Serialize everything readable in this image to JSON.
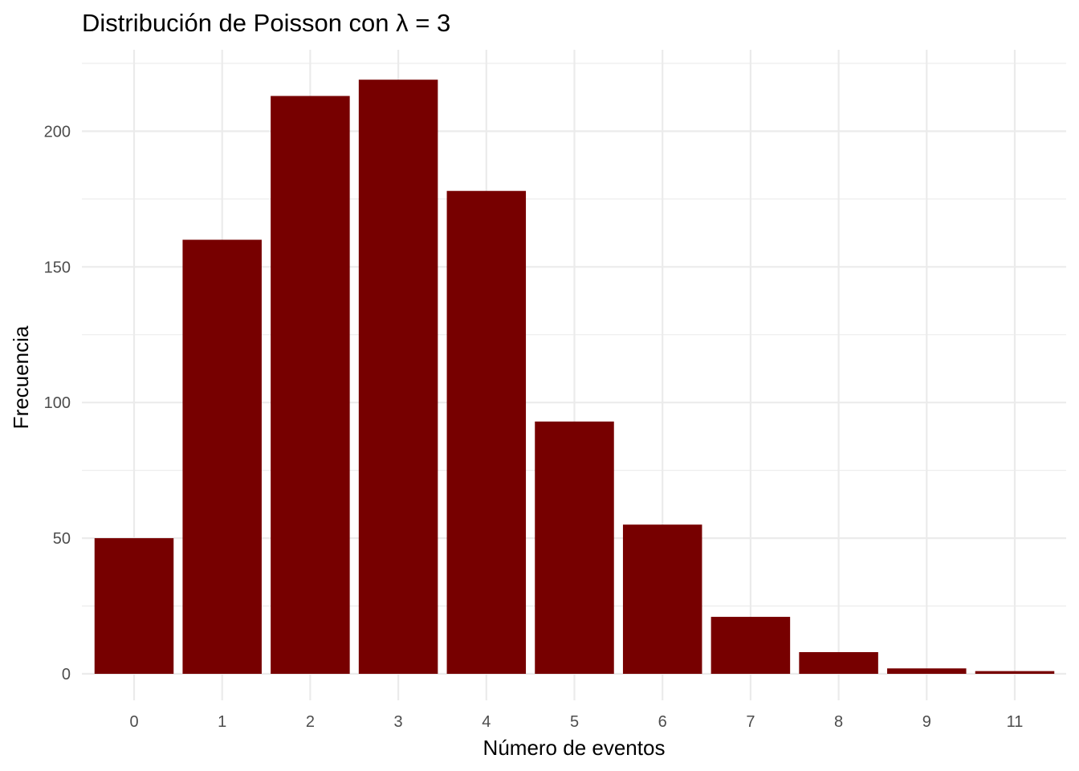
{
  "chart_data": {
    "type": "bar",
    "title": "Distribución de Poisson con λ = 3",
    "xlabel": "Número de eventos",
    "ylabel": "Frecuencia",
    "categories": [
      "0",
      "1",
      "2",
      "3",
      "4",
      "5",
      "6",
      "7",
      "8",
      "9",
      "11"
    ],
    "values": [
      50,
      160,
      213,
      219,
      178,
      93,
      55,
      21,
      8,
      2,
      1
    ],
    "ylim": [
      0,
      225
    ],
    "yticks": [
      0,
      50,
      100,
      150,
      200
    ],
    "grid": true,
    "bar_color": "#770000",
    "grid_color": "#ebebeb",
    "legend": "none"
  }
}
